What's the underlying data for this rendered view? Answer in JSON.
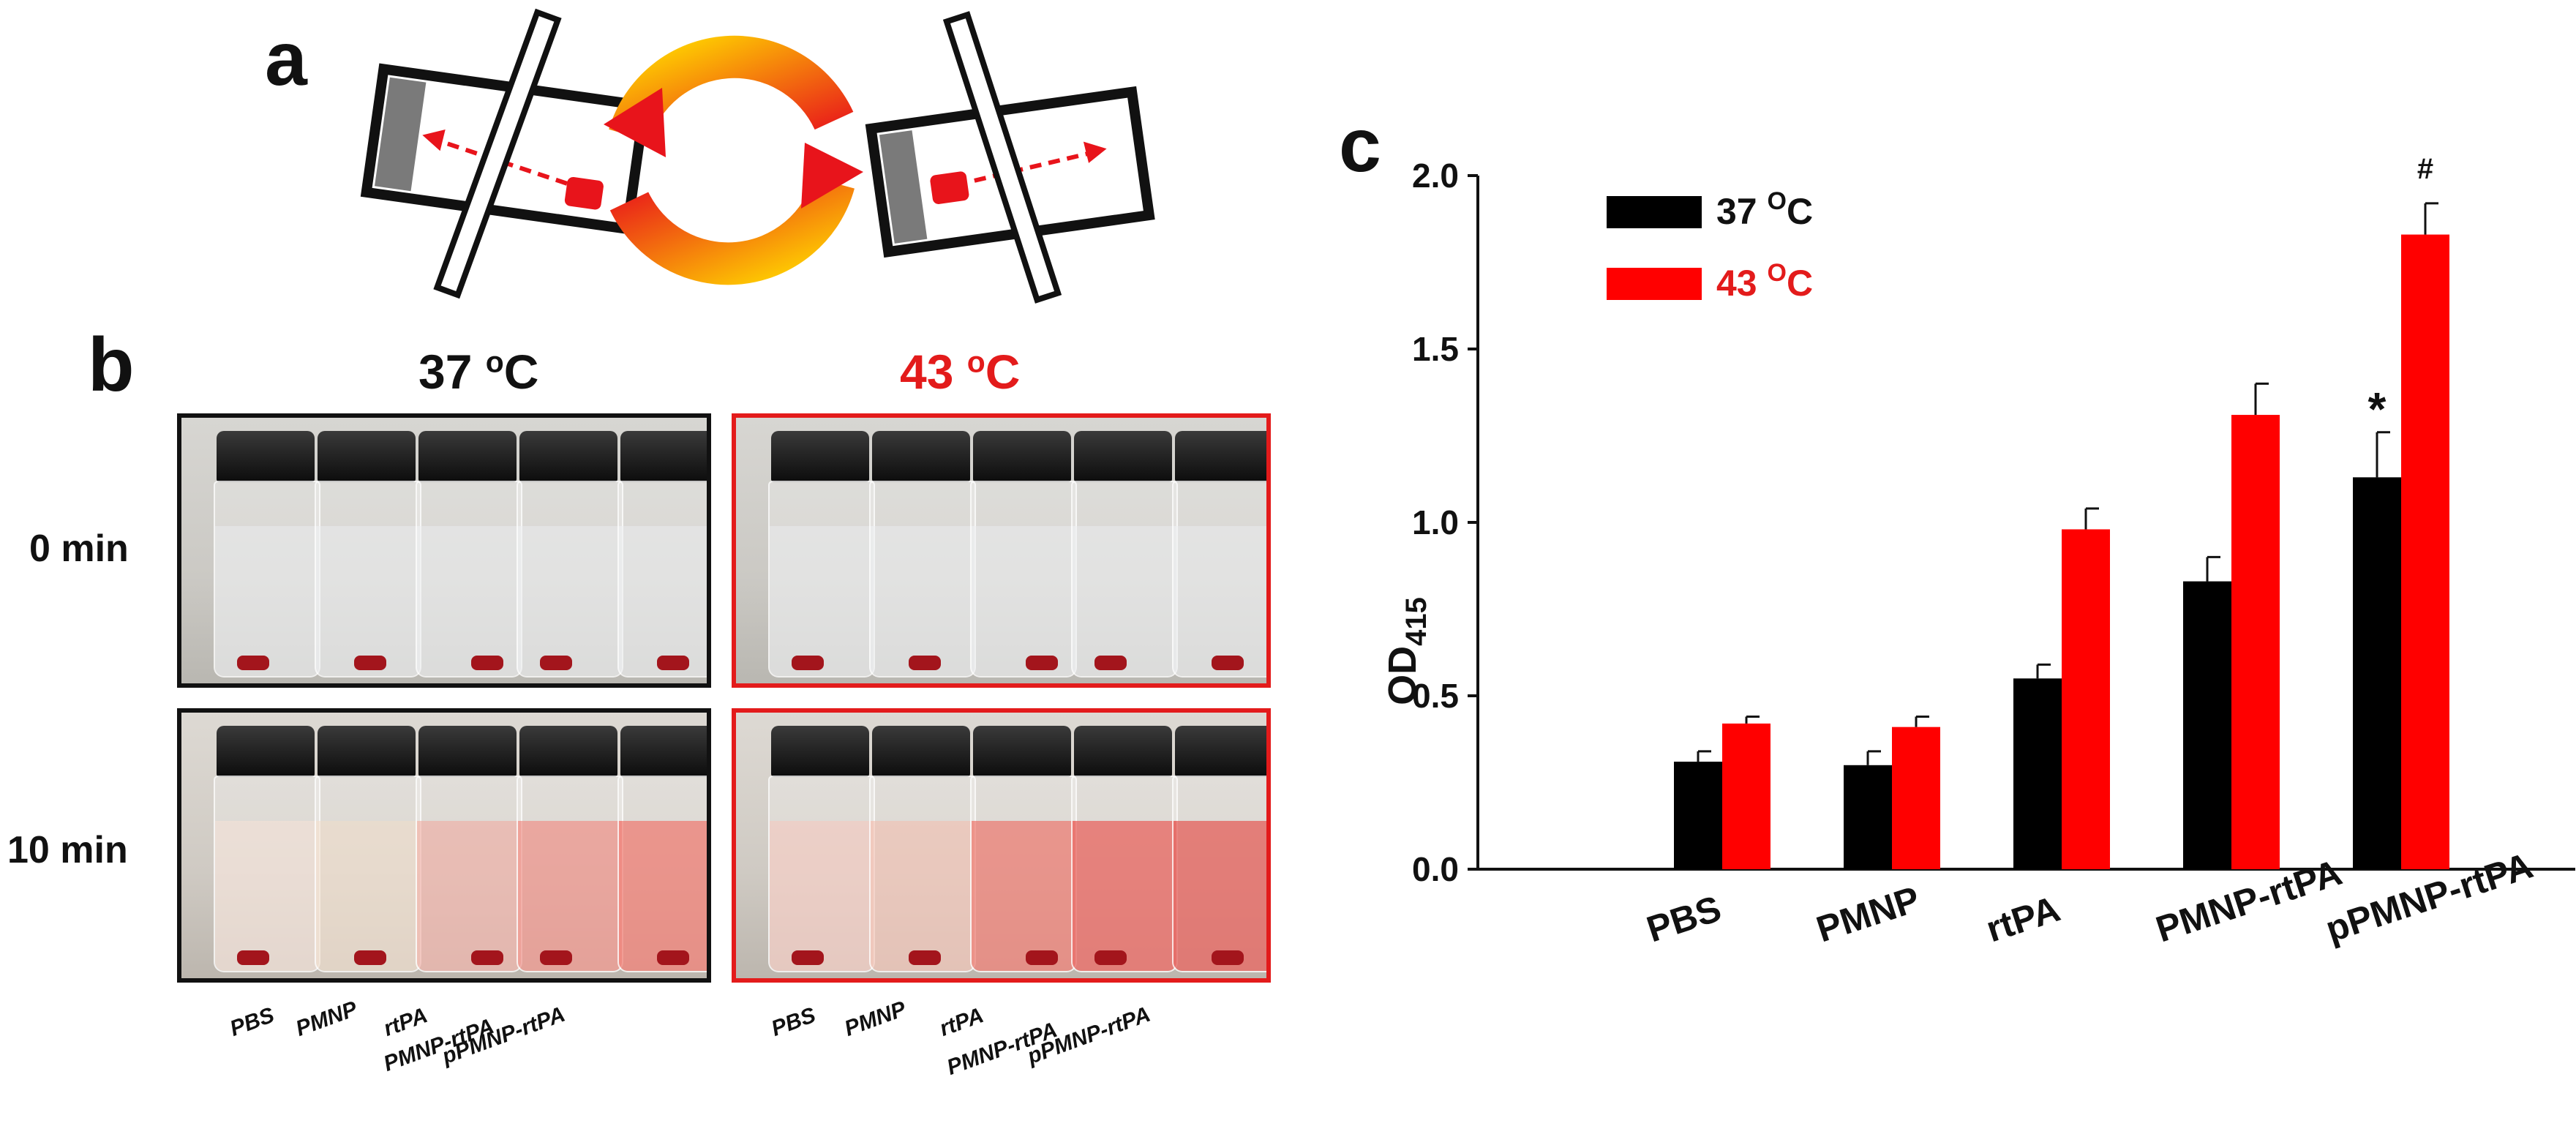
{
  "panels": {
    "a": {
      "letter": "a"
    },
    "b": {
      "letter": "b",
      "temp_37": {
        "value": "37 ",
        "sup": "o",
        "unit": "C"
      },
      "temp_43": {
        "value": "43 ",
        "sup": "o",
        "unit": "C"
      },
      "time_0": "0 min",
      "time_10": "10 min",
      "vial_labels": [
        "PBS",
        "PMNP",
        "rtPA",
        "PMNP-rtPA",
        "pPMNP-rtPA"
      ]
    },
    "c": {
      "letter": "c"
    }
  },
  "colors": {
    "black_series": "#000000",
    "red_series": "#ff0000",
    "frame_red": "#e31b1b"
  },
  "chart_data": {
    "type": "bar",
    "title": "",
    "xlabel": "",
    "ylabel": "OD",
    "ylabel_sub": "415",
    "ylim": [
      0,
      2.0
    ],
    "yticks": [
      0.0,
      0.5,
      1.0,
      1.5,
      2.0
    ],
    "ytick_labels": [
      "0.0",
      "0.5",
      "1.0",
      "1.5",
      "2.0"
    ],
    "categories": [
      "PBS",
      "PMNP",
      "rtPA",
      "PMNP-rtPA",
      "pPMNP-rtPA"
    ],
    "series": [
      {
        "name": "37 ",
        "sup": "O",
        "unit": "C",
        "color": "#000000",
        "values": [
          0.31,
          0.3,
          0.55,
          0.83,
          1.13
        ],
        "errors": [
          0.03,
          0.04,
          0.04,
          0.07,
          0.13
        ]
      },
      {
        "name": "43 ",
        "sup": "O",
        "unit": "C",
        "color": "#ff0000",
        "values": [
          0.42,
          0.41,
          0.98,
          1.31,
          1.83
        ],
        "errors": [
          0.02,
          0.03,
          0.06,
          0.09,
          0.09
        ]
      }
    ],
    "annotations": [
      {
        "text": "*",
        "category": "pPMNP-rtPA",
        "series": 0
      },
      {
        "text": "#",
        "category": "pPMNP-rtPA",
        "series": 1
      }
    ],
    "legend": "top-left"
  }
}
